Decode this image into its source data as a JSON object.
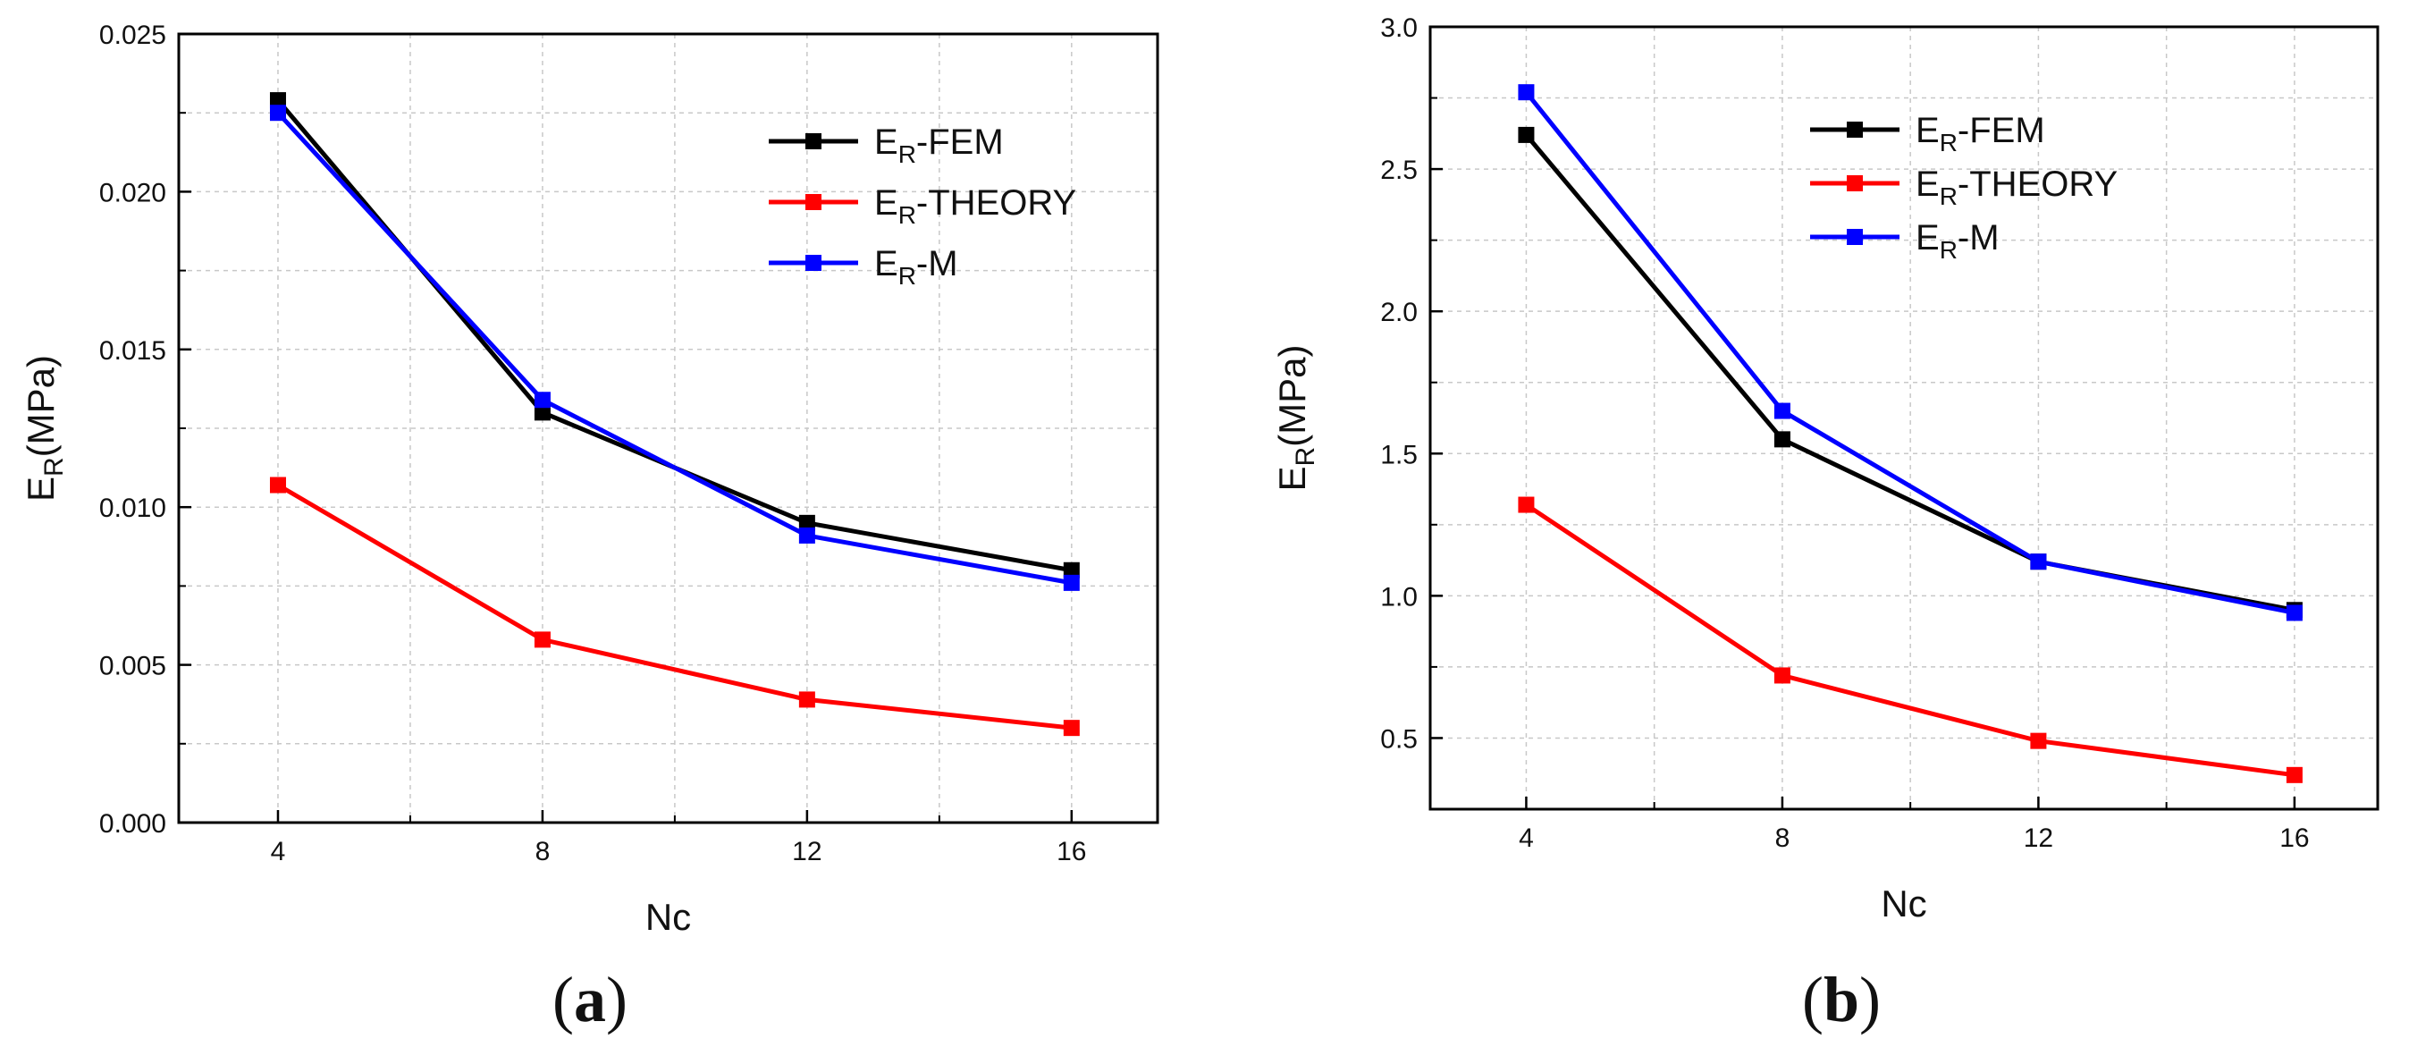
{
  "chart_data": [
    {
      "type": "line",
      "panel_label": "a",
      "xlabel": "Nc",
      "ylabel_main": "E",
      "ylabel_sub": "R",
      "ylabel_unit": "(MPa)",
      "xlim": [
        2.5,
        17.3
      ],
      "ylim": [
        0,
        0.025
      ],
      "x_ticks": [
        4,
        8,
        12,
        16
      ],
      "x_tick_labels": [
        "4",
        "8",
        "12",
        "16"
      ],
      "y_ticks": [
        0,
        0.005,
        0.01,
        0.015,
        0.02,
        0.025
      ],
      "y_tick_labels": [
        "0.000",
        "0.005",
        "0.010",
        "0.015",
        "0.020",
        "0.025"
      ],
      "grid": true,
      "legend_position": "top-right",
      "x": [
        4,
        8,
        12,
        16
      ],
      "series": [
        {
          "name_main": "E",
          "name_sub": "R",
          "name_rest": "-FEM",
          "color": "#000000",
          "values": [
            0.0229,
            0.013,
            0.0095,
            0.008
          ]
        },
        {
          "name_main": "E",
          "name_sub": "R",
          "name_rest": "-THEORY",
          "color": "#ff0000",
          "values": [
            0.0107,
            0.0058,
            0.0039,
            0.003
          ]
        },
        {
          "name_main": "E",
          "name_sub": "R",
          "name_rest": "-M",
          "color": "#0000ff",
          "values": [
            0.0225,
            0.0134,
            0.0091,
            0.0076
          ]
        }
      ]
    },
    {
      "type": "line",
      "panel_label": "b",
      "xlabel": "Nc",
      "ylabel_main": "E",
      "ylabel_sub": "R",
      "ylabel_unit": "(MPa)",
      "xlim": [
        2.5,
        17.3
      ],
      "ylim": [
        0.25,
        3.0
      ],
      "x_ticks": [
        4,
        8,
        12,
        16
      ],
      "x_tick_labels": [
        "4",
        "8",
        "12",
        "16"
      ],
      "y_ticks": [
        0.5,
        1.0,
        1.5,
        2.0,
        2.5,
        3.0
      ],
      "y_tick_labels": [
        "0.5",
        "1.0",
        "1.5",
        "2.0",
        "2.5",
        "3.0"
      ],
      "grid": true,
      "legend_position": "top-right",
      "x": [
        4,
        8,
        12,
        16
      ],
      "series": [
        {
          "name_main": "E",
          "name_sub": "R",
          "name_rest": "-FEM",
          "color": "#000000",
          "values": [
            2.62,
            1.55,
            1.12,
            0.95
          ]
        },
        {
          "name_main": "E",
          "name_sub": "R",
          "name_rest": "-THEORY",
          "color": "#ff0000",
          "values": [
            1.32,
            0.72,
            0.49,
            0.37
          ]
        },
        {
          "name_main": "E",
          "name_sub": "R",
          "name_rest": "-M",
          "color": "#0000ff",
          "values": [
            2.77,
            1.65,
            1.12,
            0.94
          ]
        }
      ]
    }
  ]
}
